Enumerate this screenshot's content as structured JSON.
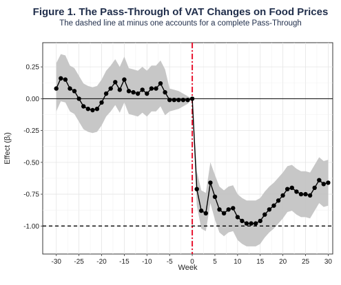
{
  "chart_data": {
    "type": "line",
    "title": "Figure 1. The Pass-Through of VAT Changes on Food Prices",
    "subtitle": "The dashed line at minus one accounts for a complete Pass-Through",
    "xlabel": "Week",
    "ylabel": "Effect (βⱼ)",
    "xlim": [
      -33,
      31
    ],
    "ylim": [
      -1.22,
      0.44
    ],
    "x_ticks": [
      -30,
      -25,
      -20,
      -15,
      -10,
      -5,
      0,
      5,
      10,
      15,
      20,
      25,
      30
    ],
    "x_tick_labels": [
      "-30",
      "-25",
      "-20",
      "-15",
      "-10",
      "-5",
      "0",
      "5",
      "10",
      "15",
      "20",
      "25",
      "30"
    ],
    "y_ticks": [
      0.25,
      0.0,
      -0.25,
      -0.5,
      -0.75,
      -1.0
    ],
    "y_tick_labels": [
      "0.25",
      "0.00",
      "-0.25",
      "-0.50",
      "-0.75",
      "-1.00"
    ],
    "grid": true,
    "reference_lines": [
      {
        "orientation": "horizontal",
        "value": 0,
        "style": "solid",
        "color": "#000000"
      },
      {
        "orientation": "horizontal",
        "value": -1,
        "style": "dashed",
        "color": "#000000"
      },
      {
        "orientation": "vertical",
        "value": 0,
        "style": "dashdot",
        "color": "#e8112d"
      }
    ],
    "series": [
      {
        "color": "#000000",
        "band_color": "#c4c4c4",
        "points": [
          {
            "x": -30,
            "y": 0.08,
            "lo": -0.1,
            "hi": 0.28
          },
          {
            "x": -29,
            "y": 0.16,
            "lo": -0.02,
            "hi": 0.35
          },
          {
            "x": -28,
            "y": 0.15,
            "lo": -0.03,
            "hi": 0.34
          },
          {
            "x": -27,
            "y": 0.08,
            "lo": -0.1,
            "hi": 0.26
          },
          {
            "x": -26,
            "y": 0.06,
            "lo": -0.12,
            "hi": 0.24
          },
          {
            "x": -25,
            "y": 0.0,
            "lo": -0.18,
            "hi": 0.18
          },
          {
            "x": -24,
            "y": -0.06,
            "lo": -0.24,
            "hi": 0.12
          },
          {
            "x": -23,
            "y": -0.08,
            "lo": -0.26,
            "hi": 0.1
          },
          {
            "x": -22,
            "y": -0.09,
            "lo": -0.27,
            "hi": 0.09
          },
          {
            "x": -21,
            "y": -0.08,
            "lo": -0.26,
            "hi": 0.1
          },
          {
            "x": -20,
            "y": -0.03,
            "lo": -0.21,
            "hi": 0.15
          },
          {
            "x": -19,
            "y": 0.04,
            "lo": -0.14,
            "hi": 0.22
          },
          {
            "x": -18,
            "y": 0.08,
            "lo": -0.1,
            "hi": 0.26
          },
          {
            "x": -17,
            "y": 0.13,
            "lo": -0.05,
            "hi": 0.31
          },
          {
            "x": -16,
            "y": 0.07,
            "lo": -0.11,
            "hi": 0.25
          },
          {
            "x": -15,
            "y": 0.15,
            "lo": -0.03,
            "hi": 0.33
          },
          {
            "x": -14,
            "y": 0.06,
            "lo": -0.12,
            "hi": 0.24
          },
          {
            "x": -13,
            "y": 0.05,
            "lo": -0.13,
            "hi": 0.23
          },
          {
            "x": -12,
            "y": 0.04,
            "lo": -0.14,
            "hi": 0.22
          },
          {
            "x": -11,
            "y": 0.07,
            "lo": -0.11,
            "hi": 0.25
          },
          {
            "x": -10,
            "y": 0.04,
            "lo": -0.14,
            "hi": 0.22
          },
          {
            "x": -9,
            "y": 0.08,
            "lo": -0.1,
            "hi": 0.26
          },
          {
            "x": -8,
            "y": 0.08,
            "lo": -0.1,
            "hi": 0.26
          },
          {
            "x": -7,
            "y": 0.12,
            "lo": -0.06,
            "hi": 0.3
          },
          {
            "x": -6,
            "y": 0.05,
            "lo": -0.13,
            "hi": 0.23
          },
          {
            "x": -5,
            "y": -0.01,
            "lo": -0.1,
            "hi": 0.08
          },
          {
            "x": -4,
            "y": -0.01,
            "lo": -0.09,
            "hi": 0.07
          },
          {
            "x": -3,
            "y": -0.01,
            "lo": -0.08,
            "hi": 0.06
          },
          {
            "x": -2,
            "y": -0.01,
            "lo": -0.06,
            "hi": 0.04
          },
          {
            "x": -1,
            "y": -0.01,
            "lo": -0.04,
            "hi": 0.02
          },
          {
            "x": 0,
            "y": 0.0,
            "lo": 0.0,
            "hi": 0.0
          },
          {
            "x": 1,
            "y": -0.71,
            "lo": -0.84,
            "hi": -0.57
          },
          {
            "x": 2,
            "y": -0.88,
            "lo": -1.02,
            "hi": -0.72
          },
          {
            "x": 3,
            "y": -0.9,
            "lo": -1.04,
            "hi": -0.74
          },
          {
            "x": 4,
            "y": -0.66,
            "lo": -0.82,
            "hi": -0.5
          },
          {
            "x": 5,
            "y": -0.77,
            "lo": -0.95,
            "hi": -0.6
          },
          {
            "x": 6,
            "y": -0.87,
            "lo": -1.05,
            "hi": -0.69
          },
          {
            "x": 7,
            "y": -0.9,
            "lo": -1.08,
            "hi": -0.72
          },
          {
            "x": 8,
            "y": -0.87,
            "lo": -1.05,
            "hi": -0.69
          },
          {
            "x": 9,
            "y": -0.86,
            "lo": -1.04,
            "hi": -0.68
          },
          {
            "x": 10,
            "y": -0.93,
            "lo": -1.11,
            "hi": -0.75
          },
          {
            "x": 11,
            "y": -0.96,
            "lo": -1.14,
            "hi": -0.78
          },
          {
            "x": 12,
            "y": -0.98,
            "lo": -1.16,
            "hi": -0.8
          },
          {
            "x": 13,
            "y": -0.98,
            "lo": -1.16,
            "hi": -0.8
          },
          {
            "x": 14,
            "y": -0.98,
            "lo": -1.16,
            "hi": -0.8
          },
          {
            "x": 15,
            "y": -0.96,
            "lo": -1.14,
            "hi": -0.78
          },
          {
            "x": 16,
            "y": -0.91,
            "lo": -1.09,
            "hi": -0.73
          },
          {
            "x": 17,
            "y": -0.87,
            "lo": -1.05,
            "hi": -0.69
          },
          {
            "x": 18,
            "y": -0.84,
            "lo": -1.02,
            "hi": -0.66
          },
          {
            "x": 19,
            "y": -0.8,
            "lo": -0.98,
            "hi": -0.62
          },
          {
            "x": 20,
            "y": -0.76,
            "lo": -0.94,
            "hi": -0.58
          },
          {
            "x": 21,
            "y": -0.71,
            "lo": -0.89,
            "hi": -0.53
          },
          {
            "x": 22,
            "y": -0.7,
            "lo": -0.88,
            "hi": -0.52
          },
          {
            "x": 23,
            "y": -0.73,
            "lo": -0.91,
            "hi": -0.55
          },
          {
            "x": 24,
            "y": -0.75,
            "lo": -0.93,
            "hi": -0.57
          },
          {
            "x": 25,
            "y": -0.75,
            "lo": -0.93,
            "hi": -0.57
          },
          {
            "x": 26,
            "y": -0.76,
            "lo": -0.94,
            "hi": -0.58
          },
          {
            "x": 27,
            "y": -0.7,
            "lo": -0.88,
            "hi": -0.52
          },
          {
            "x": 28,
            "y": -0.64,
            "lo": -0.82,
            "hi": -0.46
          },
          {
            "x": 29,
            "y": -0.67,
            "lo": -0.85,
            "hi": -0.49
          },
          {
            "x": 30,
            "y": -0.66,
            "lo": -0.84,
            "hi": -0.48
          }
        ]
      }
    ]
  }
}
